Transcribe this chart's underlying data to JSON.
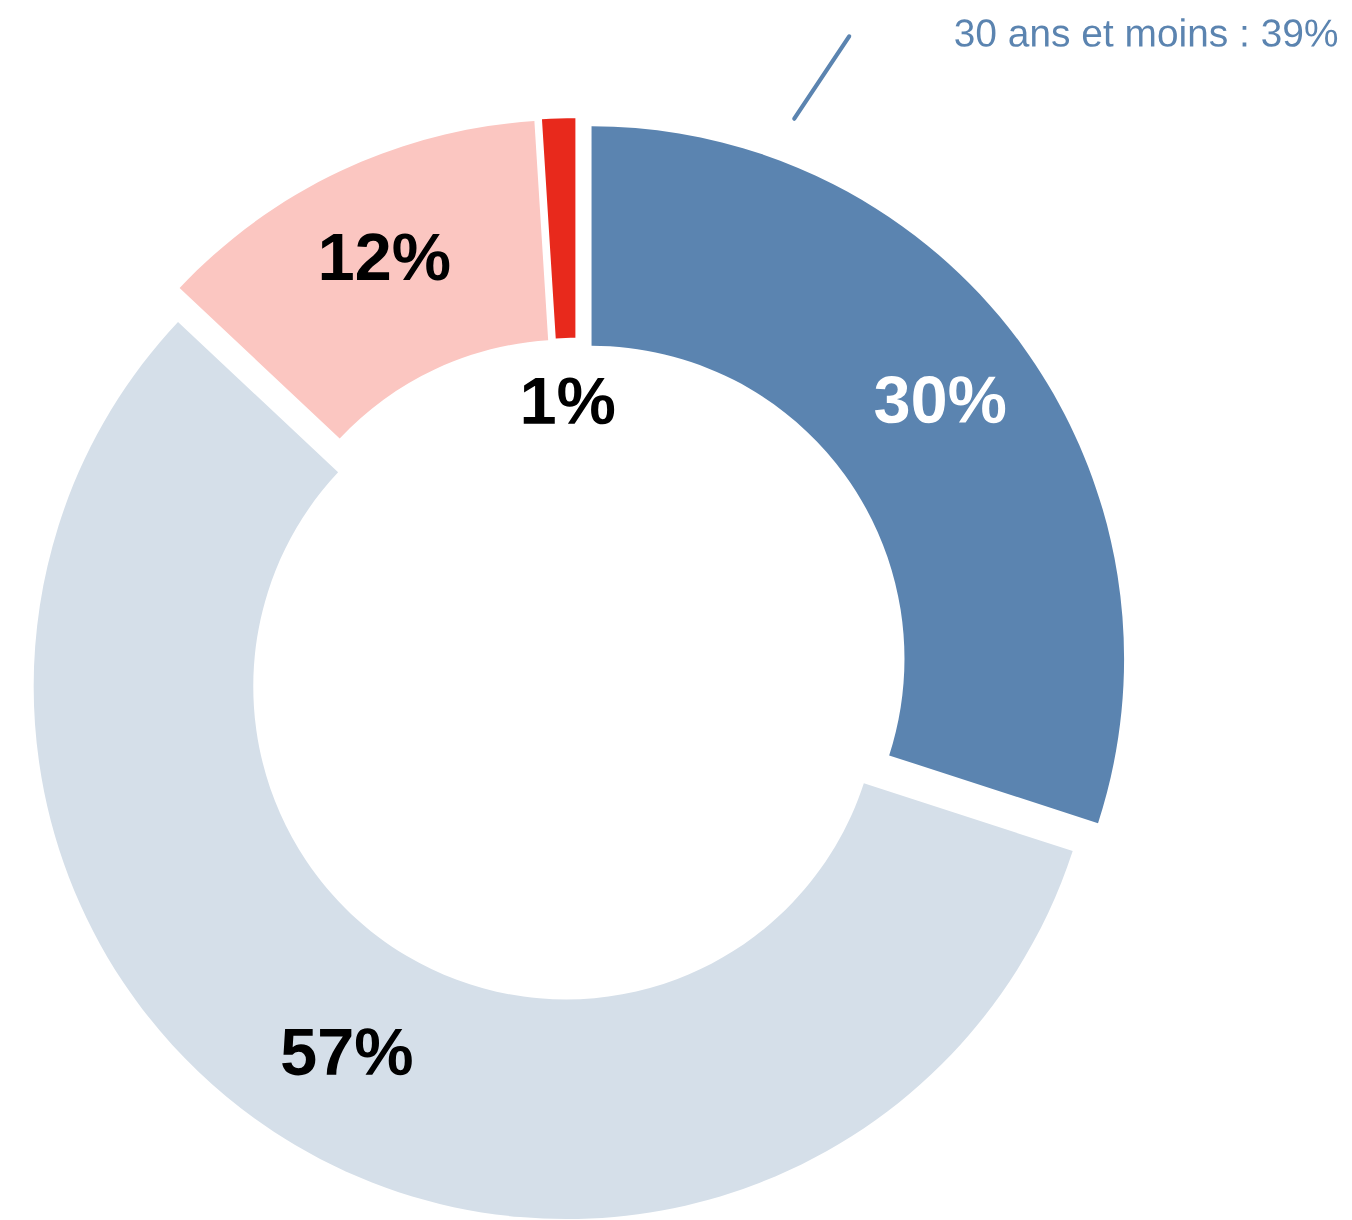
{
  "chart_data": {
    "type": "donut",
    "categories": [
      null,
      null,
      null,
      null
    ],
    "values": [
      30,
      57,
      12,
      1
    ],
    "colors": [
      "#5b84b0",
      "#d5dfe9",
      "#fbc6c1",
      "#e8291c"
    ],
    "value_labels": [
      "30%",
      "57%",
      "12%",
      "1%"
    ],
    "annotations": [
      "30 ans et moins : 39%"
    ]
  }
}
